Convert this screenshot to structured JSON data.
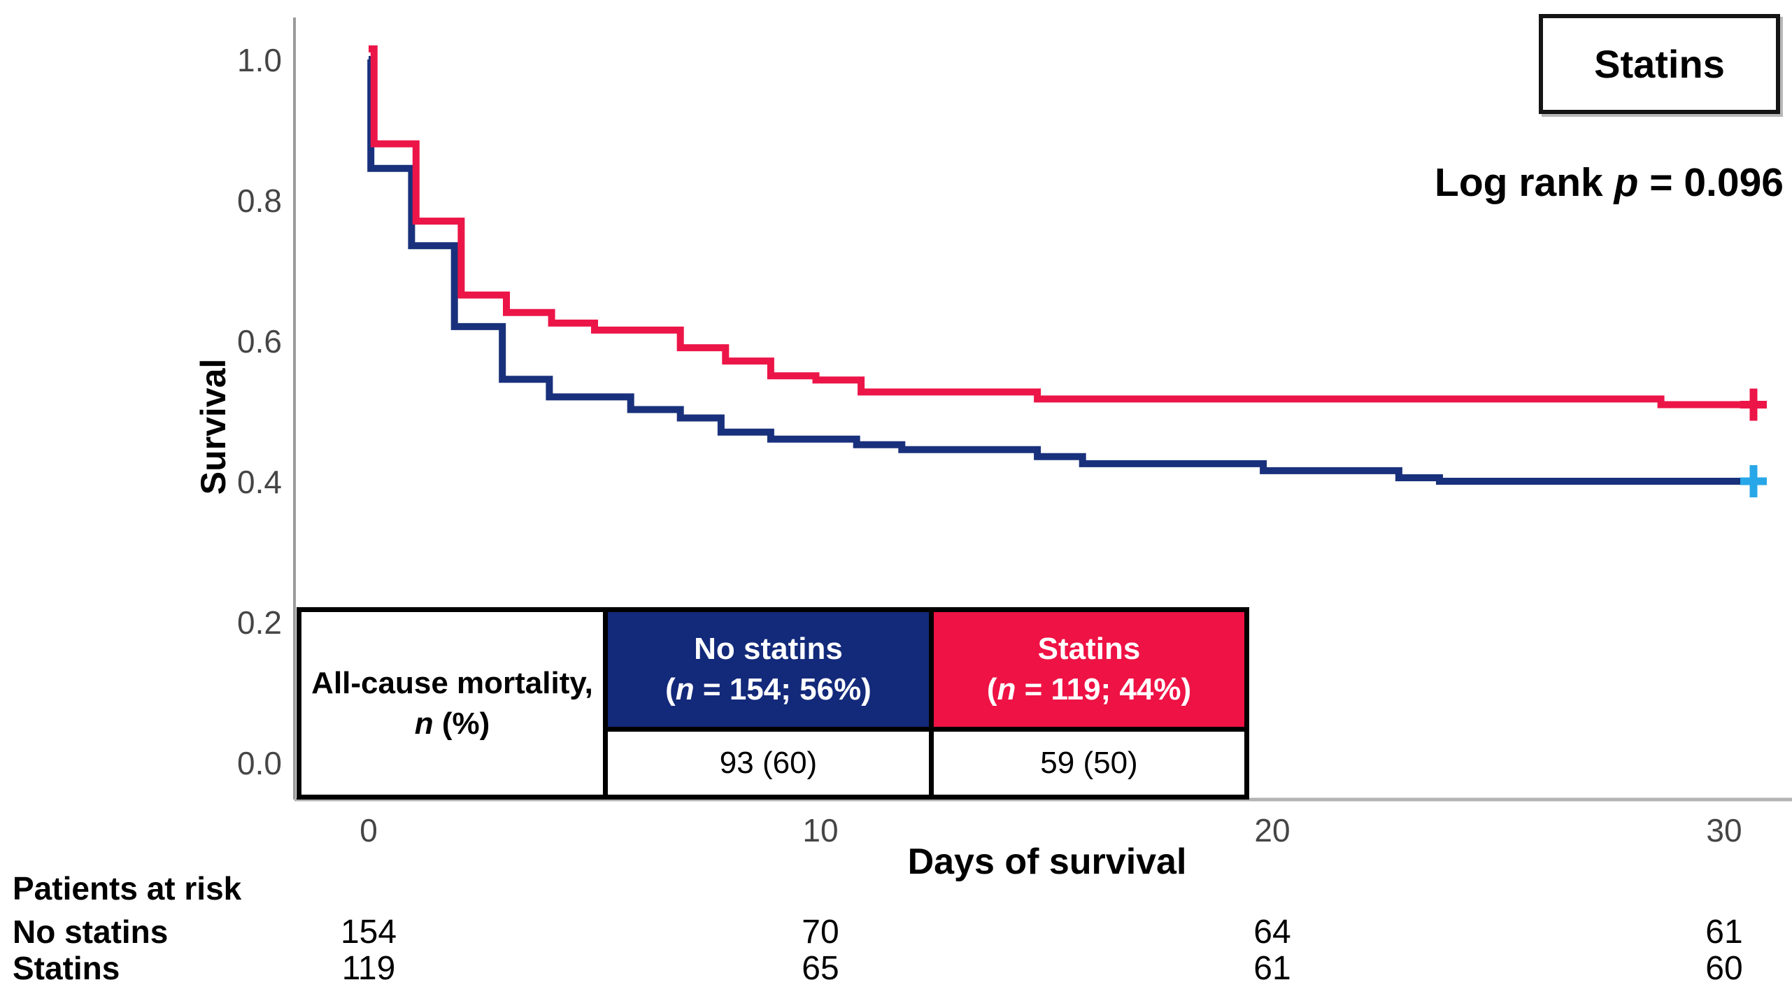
{
  "figure": {
    "legend_box_label": "Statins",
    "logrank": {
      "prefix": "Log rank ",
      "p": "p",
      "rest": " = 0.096"
    }
  },
  "chart_data": {
    "type": "line",
    "subtype": "kaplan-meier-step-curves",
    "title": "",
    "xlabel": "Days of survival",
    "ylabel": "Survival",
    "xlim": [
      0,
      31
    ],
    "ylim": [
      0.0,
      1.0
    ],
    "xticks": [
      0,
      10,
      20,
      30
    ],
    "yticks": [
      "1.0",
      "0.8",
      "0.6",
      "0.4",
      "0.2",
      "0.0"
    ],
    "grid": false,
    "legend_position": "top-right framed box",
    "annotation": "Log rank p = 0.096",
    "axis_color": "#a0a0a0",
    "series": [
      {
        "name": "No statins",
        "color": "#19317c",
        "censor_marker": "+",
        "censor_marker_color": "#28a7e8",
        "censor_day": 30.65,
        "end_day": 30.8,
        "steps_day_survival": [
          [
            0,
            1.0
          ],
          [
            0.05,
            0.845
          ],
          [
            0.95,
            0.735
          ],
          [
            1.9,
            0.62
          ],
          [
            2.96,
            0.545
          ],
          [
            4.0,
            0.52
          ],
          [
            5.8,
            0.502
          ],
          [
            6.9,
            0.49
          ],
          [
            7.8,
            0.47
          ],
          [
            8.9,
            0.46
          ],
          [
            10.8,
            0.452
          ],
          [
            11.8,
            0.445
          ],
          [
            14.8,
            0.435
          ],
          [
            15.8,
            0.425
          ],
          [
            19.8,
            0.415
          ],
          [
            22.8,
            0.405
          ],
          [
            23.7,
            0.4
          ]
        ]
      },
      {
        "name": "Statins",
        "color": "#ec1548",
        "censor_marker": "+",
        "censor_marker_color": "#ec1548",
        "censor_day": 30.65,
        "end_day": 30.8,
        "steps_day_survival": [
          [
            0,
            1.015
          ],
          [
            0.12,
            0.88
          ],
          [
            1.05,
            0.77
          ],
          [
            2.05,
            0.665
          ],
          [
            3.05,
            0.64
          ],
          [
            4.05,
            0.625
          ],
          [
            5.0,
            0.615
          ],
          [
            6.9,
            0.59
          ],
          [
            7.9,
            0.571
          ],
          [
            8.9,
            0.55
          ],
          [
            9.9,
            0.544
          ],
          [
            10.9,
            0.527
          ],
          [
            14.8,
            0.517
          ],
          [
            28.6,
            0.509
          ]
        ]
      }
    ]
  },
  "mortality_table": {
    "label_line1": "All-cause mortality,",
    "label_line2_n": "n",
    "label_line2_post": " (%)",
    "col_no_statins": {
      "line1": "No statins",
      "line2_pre": "(",
      "line2_n": "n",
      "line2_post": " = 154; 56%)",
      "bg": "#13297a",
      "value": "93 (60)"
    },
    "col_statins": {
      "line1": "Statins",
      "line2_pre": "(",
      "line2_n": "n",
      "line2_post": " = 119; 44%)",
      "bg": "#ee1245",
      "value": "59 (50)"
    }
  },
  "risk_table": {
    "title": "Patients at risk",
    "rows": [
      {
        "label": "No statins",
        "counts": [
          "154",
          "70",
          "64",
          "61"
        ]
      },
      {
        "label": "Statins",
        "counts": [
          "119",
          "65",
          "61",
          "60"
        ]
      }
    ]
  }
}
